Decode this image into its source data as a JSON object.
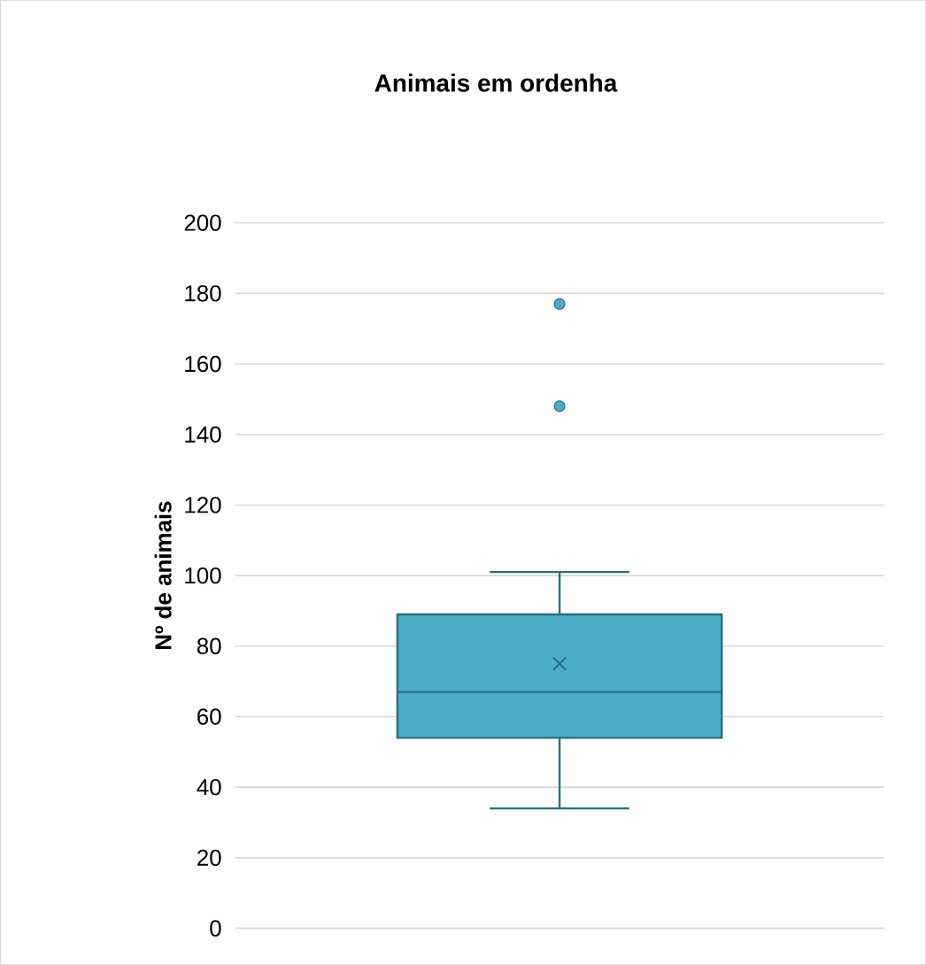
{
  "chart_data": {
    "type": "box",
    "title": "Animais em ordenha",
    "ylabel": "Nº de animais",
    "categories": [
      null
    ],
    "boxes": [
      {
        "low": 34,
        "q1": 54,
        "median": 67,
        "q3": 89,
        "high": 101,
        "mean": 75,
        "outliers": [
          148,
          177
        ]
      }
    ],
    "color": "#4bacc6",
    "ylim": [
      0,
      200
    ],
    "yticks": [
      0,
      20,
      40,
      60,
      80,
      100,
      120,
      140,
      160,
      180,
      200
    ],
    "grid": "y"
  }
}
